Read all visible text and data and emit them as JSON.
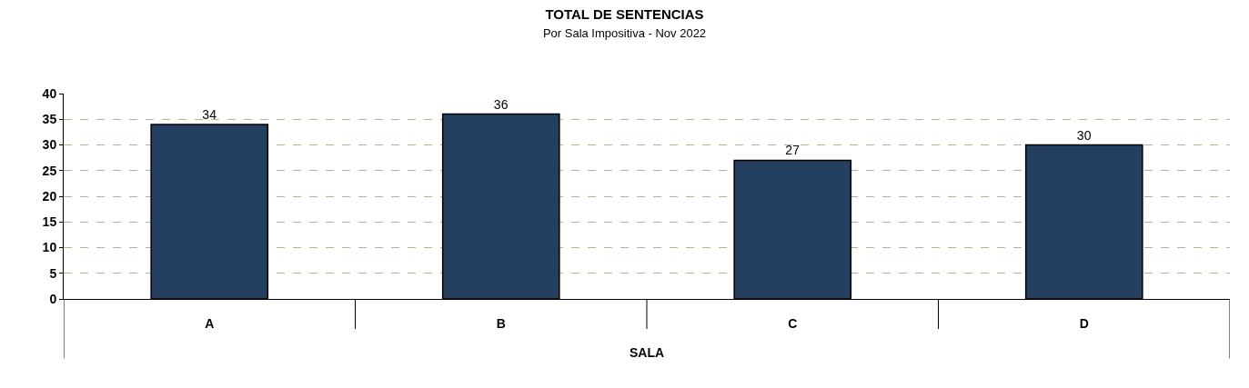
{
  "chart_data": {
    "type": "bar",
    "title": "TOTAL DE SENTENCIAS",
    "subtitle": "Por Sala Impositiva - Nov 2022",
    "xlabel": "SALA",
    "categories": [
      "A",
      "B",
      "C",
      "D"
    ],
    "values": [
      34,
      36,
      27,
      30
    ],
    "color": "#243f60",
    "ylim": [
      0,
      40
    ],
    "yticks": [
      0,
      5,
      10,
      15,
      20,
      25,
      30,
      35,
      40
    ],
    "grid": "y",
    "data_labels": true,
    "legend": false
  }
}
